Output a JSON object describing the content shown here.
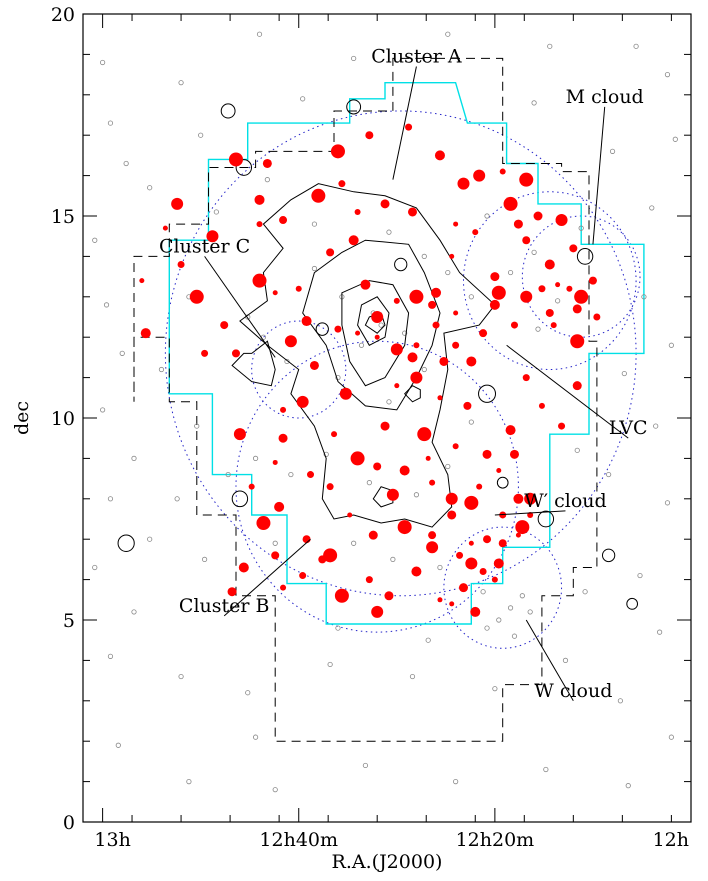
{
  "chart_data": {
    "type": "scatter",
    "title": "",
    "xlabel": "R.A.(J2000)",
    "ylabel": "dec",
    "xlim_deg": [
      195.5,
      180.0
    ],
    "ylim": [
      0,
      20
    ],
    "x_reversed": true,
    "x_ticks": [
      {
        "value": 195,
        "label": "13h"
      },
      {
        "value": 190,
        "label": "12h40m"
      },
      {
        "value": 185,
        "label": "12h20m"
      },
      {
        "value": 180,
        "label": "12h"
      }
    ],
    "y_ticks": [
      {
        "value": 0,
        "label": "0"
      },
      {
        "value": 5,
        "label": "5"
      },
      {
        "value": 10,
        "label": "10"
      },
      {
        "value": 15,
        "label": "15"
      },
      {
        "value": 20,
        "label": "20"
      }
    ],
    "annotations": [
      {
        "text": "Cluster A",
        "label_at": [
          187.0,
          18.8
        ],
        "pointer_to": [
          187.6,
          15.9
        ]
      },
      {
        "text": "M cloud",
        "label_at": [
          182.2,
          17.8
        ],
        "pointer_to": [
          182.5,
          14.3
        ]
      },
      {
        "text": "Cluster C",
        "label_at": [
          192.4,
          14.1
        ],
        "pointer_to": [
          190.6,
          11.5
        ]
      },
      {
        "text": "LVC",
        "label_at": [
          181.6,
          9.6
        ],
        "pointer_to": [
          184.7,
          11.8
        ]
      },
      {
        "text": "W′ cloud",
        "label_at": [
          183.2,
          7.8
        ],
        "pointer_to": [
          185.0,
          7.6
        ]
      },
      {
        "text": "Cluster B",
        "label_at": [
          191.9,
          5.2
        ],
        "pointer_to": [
          189.7,
          7.0
        ]
      },
      {
        "text": "W cloud",
        "label_at": [
          183.0,
          3.1
        ],
        "pointer_to": [
          184.2,
          5.0
        ]
      }
    ],
    "series": [
      {
        "kind": "red_filled_circles",
        "color": "#ff0000",
        "points": [
          [
            191.6,
            16.4
          ],
          [
            191.6,
            11.6
          ],
          [
            193.0,
            13.8
          ],
          [
            191.0,
            15.4
          ],
          [
            190.6,
            13.1
          ],
          [
            190.2,
            11.9
          ],
          [
            190.0,
            13.2
          ],
          [
            189.6,
            11.3
          ],
          [
            189.5,
            15.5
          ],
          [
            189.2,
            14.1
          ],
          [
            189.0,
            12.2
          ],
          [
            188.6,
            14.4
          ],
          [
            188.5,
            12.1
          ],
          [
            188.0,
            12.5
          ],
          [
            187.5,
            12.9
          ],
          [
            187.1,
            15.1
          ],
          [
            187.0,
            13.0
          ],
          [
            186.6,
            12.8
          ],
          [
            186.5,
            12.3
          ],
          [
            186.5,
            13.1
          ],
          [
            186.0,
            12.6
          ],
          [
            185.8,
            15.8
          ],
          [
            185.5,
            14.6
          ],
          [
            185.0,
            13.5
          ],
          [
            184.6,
            15.3
          ],
          [
            184.2,
            14.4
          ],
          [
            183.8,
            13.2
          ],
          [
            183.6,
            13.8
          ],
          [
            183.4,
            13.3
          ],
          [
            183.3,
            14.9
          ],
          [
            183.1,
            13.2
          ],
          [
            182.9,
            12.7
          ],
          [
            182.8,
            13.0
          ],
          [
            183.6,
            12.6
          ],
          [
            184.2,
            11.0
          ],
          [
            185.6,
            11.4
          ],
          [
            186.4,
            10.5
          ],
          [
            187.0,
            11.0
          ],
          [
            186.0,
            9.3
          ],
          [
            185.2,
            9.1
          ],
          [
            188.5,
            9.0
          ],
          [
            188.0,
            8.8
          ],
          [
            189.2,
            8.3
          ],
          [
            190.5,
            7.8
          ],
          [
            188.7,
            7.6
          ],
          [
            187.6,
            8.1
          ],
          [
            186.6,
            8.4
          ],
          [
            186.1,
            7.6
          ],
          [
            185.6,
            7.9
          ],
          [
            185.2,
            7.0
          ],
          [
            184.8,
            7.6
          ],
          [
            184.4,
            8.0
          ],
          [
            185.6,
            6.9
          ],
          [
            185.6,
            6.4
          ],
          [
            185.0,
            6.0
          ],
          [
            185.8,
            5.8
          ],
          [
            189.2,
            6.6
          ],
          [
            189.4,
            6.5
          ],
          [
            188.2,
            6.0
          ],
          [
            187.0,
            6.2
          ],
          [
            186.4,
            5.5
          ],
          [
            186.6,
            6.8
          ],
          [
            183.8,
            10.3
          ],
          [
            182.9,
            10.8
          ],
          [
            191.0,
            13.4
          ],
          [
            190.4,
            14.9
          ],
          [
            188.9,
            15.8
          ],
          [
            189.8,
            12.4
          ],
          [
            190.6,
            8.9
          ],
          [
            191.5,
            9.6
          ],
          [
            191.2,
            8.3
          ],
          [
            187.8,
            9.8
          ],
          [
            186.8,
            9.6
          ],
          [
            185.7,
            10.3
          ],
          [
            184.5,
            12.3
          ],
          [
            185.0,
            12.8
          ],
          [
            186.0,
            14.8
          ],
          [
            185.4,
            16.0
          ],
          [
            184.8,
            16.1
          ],
          [
            184.4,
            14.8
          ],
          [
            182.9,
            11.9
          ],
          [
            182.5,
            13.4
          ],
          [
            183.3,
            9.8
          ],
          [
            184.6,
            9.7
          ],
          [
            184.9,
            8.7
          ],
          [
            189.9,
            10.4
          ],
          [
            190.4,
            10.2
          ],
          [
            188.1,
            7.1
          ],
          [
            187.3,
            7.3
          ],
          [
            186.6,
            7.1
          ],
          [
            185.9,
            6.6
          ],
          [
            184.9,
            6.4
          ],
          [
            184.4,
            7.1
          ],
          [
            184.1,
            8.0
          ],
          [
            184.1,
            7.6
          ],
          [
            187.7,
            5.6
          ],
          [
            188.9,
            5.6
          ],
          [
            190.6,
            6.6
          ],
          [
            189.9,
            6.1
          ],
          [
            191.4,
            6.3
          ],
          [
            193.4,
            14.7
          ],
          [
            192.2,
            14.5
          ],
          [
            191.0,
            14.8
          ],
          [
            190.8,
            16.3
          ],
          [
            189.0,
            16.6
          ],
          [
            188.2,
            17.0
          ],
          [
            187.2,
            17.2
          ],
          [
            186.4,
            16.5
          ],
          [
            186.1,
            14.0
          ],
          [
            184.2,
            13.0
          ],
          [
            183.5,
            12.3
          ],
          [
            183.9,
            15.0
          ],
          [
            184.9,
            13.1
          ],
          [
            185.3,
            12.1
          ],
          [
            186.0,
            11.8
          ],
          [
            187.1,
            11.5
          ],
          [
            187.5,
            10.8
          ],
          [
            188.8,
            10.6
          ],
          [
            189.1,
            9.6
          ],
          [
            190.4,
            9.5
          ],
          [
            190.9,
            7.4
          ],
          [
            189.8,
            7.0
          ],
          [
            189.7,
            8.6
          ],
          [
            187.3,
            8.7
          ],
          [
            186.7,
            9.0
          ],
          [
            186.1,
            8.0
          ],
          [
            185.4,
            8.3
          ],
          [
            184.5,
            9.1
          ],
          [
            184.3,
            7.3
          ],
          [
            184.8,
            6.9
          ],
          [
            185.3,
            6.2
          ],
          [
            185.5,
            5.2
          ],
          [
            186.1,
            5.4
          ],
          [
            188.0,
            5.2
          ],
          [
            190.4,
            5.8
          ],
          [
            191.7,
            5.7
          ],
          [
            192.6,
            13.0
          ],
          [
            191.9,
            12.3
          ],
          [
            192.4,
            11.6
          ],
          [
            193.9,
            12.1
          ],
          [
            194.0,
            13.4
          ],
          [
            193.1,
            15.3
          ],
          [
            188.5,
            15.1
          ],
          [
            187.8,
            15.3
          ],
          [
            184.2,
            15.9
          ],
          [
            183.0,
            14.2
          ],
          [
            182.4,
            12.5
          ],
          [
            188.3,
            13.3
          ],
          [
            188.0,
            12.0
          ],
          [
            187.5,
            11.7
          ],
          [
            187.0,
            11.8
          ],
          [
            186.3,
            11.4
          ]
        ]
      },
      {
        "kind": "gray_open_circles",
        "color": "#888888",
        "points": [
          [
            195.0,
            18.8
          ],
          [
            193.0,
            18.3
          ],
          [
            191.0,
            19.5
          ],
          [
            188.6,
            18.9
          ],
          [
            186.2,
            19.5
          ],
          [
            183.6,
            19.2
          ],
          [
            181.4,
            19.2
          ],
          [
            180.6,
            18.5
          ],
          [
            194.8,
            17.3
          ],
          [
            194.4,
            16.3
          ],
          [
            195.2,
            14.4
          ],
          [
            194.9,
            12.8
          ],
          [
            194.5,
            11.6
          ],
          [
            195.0,
            10.2
          ],
          [
            194.2,
            9.0
          ],
          [
            194.8,
            8.0
          ],
          [
            193.8,
            7.0
          ],
          [
            194.2,
            5.2
          ],
          [
            194.8,
            4.1
          ],
          [
            193.0,
            3.6
          ],
          [
            191.3,
            3.2
          ],
          [
            189.2,
            3.9
          ],
          [
            187.1,
            3.6
          ],
          [
            185.0,
            3.3
          ],
          [
            183.2,
            4.0
          ],
          [
            181.8,
            3.0
          ],
          [
            180.8,
            4.7
          ],
          [
            181.3,
            6.1
          ],
          [
            180.6,
            7.9
          ],
          [
            180.9,
            9.8
          ],
          [
            180.5,
            11.8
          ],
          [
            181.2,
            13.0
          ],
          [
            181.0,
            15.2
          ],
          [
            180.4,
            16.9
          ],
          [
            194.6,
            1.9
          ],
          [
            192.8,
            1.0
          ],
          [
            190.6,
            0.8
          ],
          [
            188.3,
            1.4
          ],
          [
            186.0,
            1.0
          ],
          [
            183.7,
            1.3
          ],
          [
            181.6,
            0.9
          ],
          [
            180.5,
            2.1
          ],
          [
            188.1,
            12.6
          ],
          [
            187.9,
            12.3
          ],
          [
            188.4,
            11.8
          ],
          [
            187.3,
            12.1
          ],
          [
            188.9,
            13.0
          ],
          [
            189.6,
            13.7
          ],
          [
            186.8,
            14.0
          ],
          [
            186.2,
            13.6
          ],
          [
            185.6,
            13.0
          ],
          [
            186.8,
            11.2
          ],
          [
            187.7,
            10.4
          ],
          [
            189.0,
            11.0
          ],
          [
            190.3,
            11.4
          ],
          [
            191.3,
            12.5
          ],
          [
            190.9,
            12.0
          ],
          [
            184.6,
            13.6
          ],
          [
            184.0,
            14.1
          ],
          [
            183.4,
            12.9
          ],
          [
            183.9,
            12.2
          ],
          [
            182.8,
            14.7
          ],
          [
            185.6,
            9.9
          ],
          [
            186.2,
            8.8
          ],
          [
            187.0,
            8.1
          ],
          [
            188.2,
            8.4
          ],
          [
            189.3,
            9.1
          ],
          [
            190.2,
            8.6
          ],
          [
            191.1,
            9.0
          ],
          [
            191.8,
            8.6
          ],
          [
            190.6,
            6.9
          ],
          [
            188.6,
            6.9
          ],
          [
            187.6,
            6.5
          ],
          [
            186.4,
            6.3
          ],
          [
            185.3,
            5.7
          ],
          [
            184.6,
            5.3
          ],
          [
            184.3,
            5.6
          ],
          [
            184.9,
            5.0
          ],
          [
            185.2,
            4.8
          ],
          [
            184.5,
            4.6
          ],
          [
            184.1,
            5.2
          ],
          [
            189.6,
            14.8
          ],
          [
            187.7,
            14.6
          ],
          [
            185.2,
            15.0
          ],
          [
            190.8,
            15.9
          ],
          [
            192.1,
            15.1
          ],
          [
            192.8,
            13.0
          ],
          [
            193.5,
            11.2
          ],
          [
            192.6,
            9.8
          ],
          [
            193.1,
            8.0
          ],
          [
            192.4,
            6.5
          ],
          [
            189.0,
            4.8
          ],
          [
            186.7,
            4.5
          ],
          [
            182.7,
            5.7
          ],
          [
            182.1,
            8.6
          ],
          [
            182.9,
            9.2
          ],
          [
            181.7,
            11.1
          ],
          [
            182.0,
            16.6
          ],
          [
            184.0,
            17.8
          ],
          [
            189.9,
            17.9
          ],
          [
            192.5,
            17.0
          ],
          [
            193.8,
            15.7
          ],
          [
            195.2,
            6.3
          ],
          [
            191.1,
            2.1
          ]
        ]
      }
    ],
    "colors": {
      "data_points": "#ff0000",
      "gray_points": "#888888",
      "survey_outline": "#00e0e6",
      "dashed_outline": "#000000",
      "dotted_circles": "#2323c8",
      "contours": "#000000"
    }
  }
}
